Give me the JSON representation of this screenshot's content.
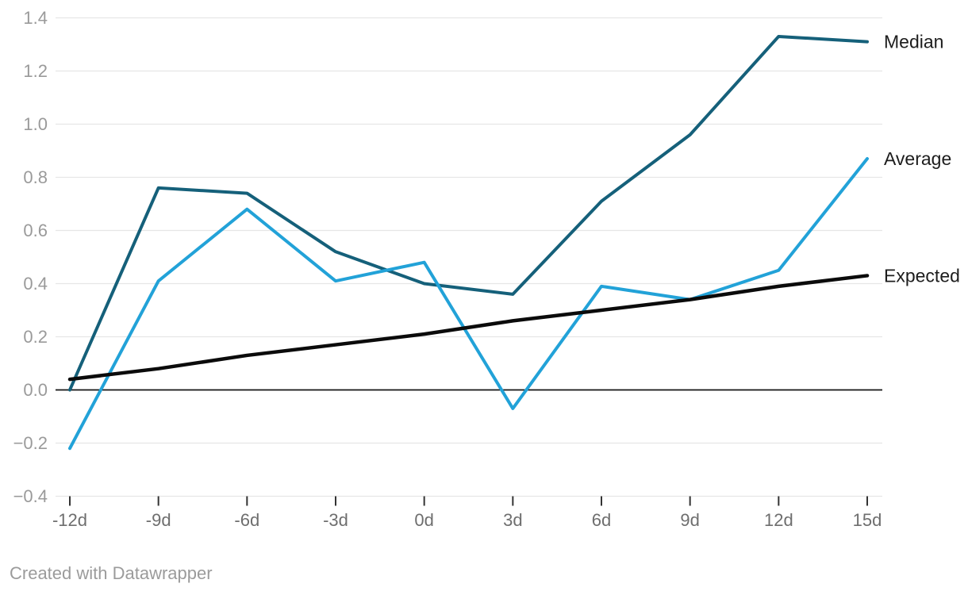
{
  "chart_data": {
    "type": "line",
    "title": "",
    "xlabel": "",
    "ylabel": "",
    "x_labels": [
      "-12d",
      "-9d",
      "-6d",
      "-3d",
      "0d",
      "3d",
      "6d",
      "9d",
      "12d",
      "15d"
    ],
    "x_days": [
      -12,
      -9,
      -6,
      -3,
      0,
      3,
      6,
      9,
      12,
      15
    ],
    "series": [
      {
        "name": "Median",
        "color": "#15607a",
        "values": [
          0.0,
          0.76,
          0.74,
          0.52,
          0.4,
          0.36,
          0.71,
          0.96,
          1.33,
          1.31
        ]
      },
      {
        "name": "Average",
        "color": "#22a2d8",
        "values": [
          -0.22,
          0.41,
          0.68,
          0.41,
          0.48,
          -0.07,
          0.39,
          0.34,
          0.45,
          0.87
        ]
      },
      {
        "name": "Expected",
        "color": "#0b0b0b",
        "values": [
          0.04,
          0.08,
          0.13,
          0.17,
          0.21,
          0.26,
          0.3,
          0.34,
          0.39,
          0.43
        ]
      }
    ],
    "y_ticks": [
      1.4,
      1.2,
      1.0,
      0.8,
      0.6,
      0.4,
      0.2,
      0.0,
      -0.2,
      -0.4
    ],
    "y_tick_labels": [
      "1.4",
      "1.2",
      "1.0",
      "0.8",
      "0.6",
      "0.4",
      "0.2",
      "0.0",
      "−0.2",
      "−0.4"
    ],
    "ylim": [
      -0.4,
      1.4
    ],
    "grid": true,
    "baseline_value": 0,
    "legend_position": "right-of-line-ends"
  },
  "colors": {
    "background": "#ffffff",
    "grid": "#e6e6e6",
    "baseline": "#141414",
    "tick": "#333333",
    "y_label": "#9a9a9a",
    "x_label": "#6e6e6e",
    "series_label": "#1d1d1d",
    "attribution": "#9b9b9b"
  },
  "attribution": "Created with Datawrapper"
}
